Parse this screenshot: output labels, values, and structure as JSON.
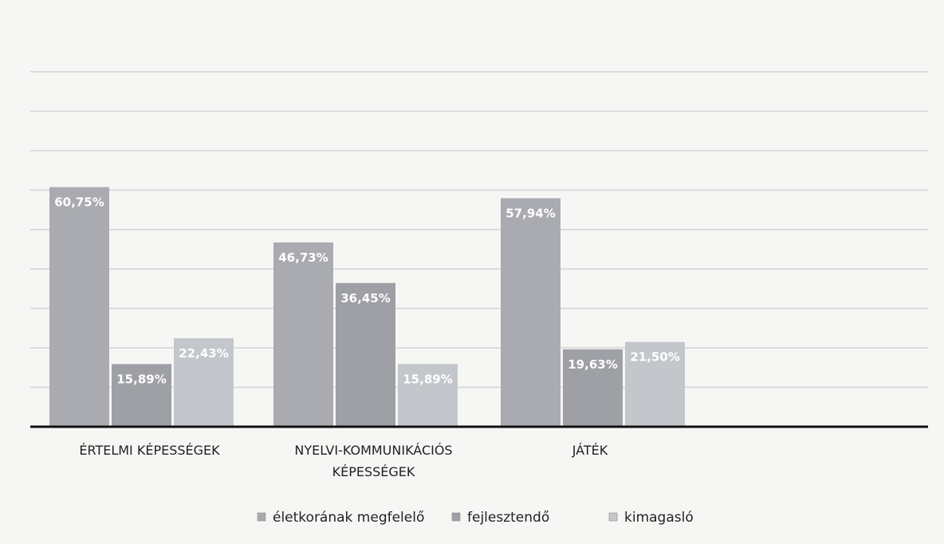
{
  "chart_data": {
    "type": "bar",
    "categories": [
      [
        "ÉRTELMI KÉPESSÉGEK"
      ],
      [
        "NYELVI-KOMMUNIKÁCIÓS",
        "KÉPESSÉGEK"
      ],
      [
        "JÁTÉK"
      ]
    ],
    "series": [
      {
        "name": "életkorának megfelelő",
        "values": [
          60.75,
          46.73,
          57.94
        ],
        "labels": [
          "60,75%",
          "46,73%",
          "57,94%"
        ],
        "color": "#a9abb0"
      },
      {
        "name": "fejlesztendő",
        "values": [
          15.89,
          36.45,
          19.63
        ],
        "labels": [
          "15,89%",
          "36,45%",
          "19,63%"
        ],
        "color": "#9ea0a6"
      },
      {
        "name": "kimagasló",
        "values": [
          22.43,
          15.89,
          21.5
        ],
        "labels": [
          "22,43%",
          "15,89%",
          "21,50%"
        ],
        "color": "#c3c6cb"
      }
    ],
    "ylim": [
      0,
      90
    ],
    "grid": true,
    "legend_position": "bottom"
  }
}
